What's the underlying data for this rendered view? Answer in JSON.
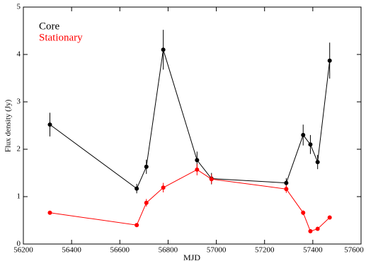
{
  "chart_data": {
    "type": "scatter",
    "xlabel": "MJD",
    "ylabel": "Flux density (Jy)",
    "x": [
      56310,
      56670,
      56710,
      56780,
      56920,
      56980,
      57290,
      57360,
      57390,
      57420,
      57470
    ],
    "series": [
      {
        "name": "Core",
        "color": "#000000",
        "values": [
          2.52,
          1.17,
          1.63,
          4.1,
          1.77,
          1.38,
          1.29,
          2.3,
          2.1,
          1.73,
          3.87
        ],
        "errors": [
          0.25,
          0.1,
          0.15,
          0.42,
          0.18,
          0.12,
          0.1,
          0.22,
          0.2,
          0.15,
          0.38
        ]
      },
      {
        "name": "Stationary",
        "color": "#ff0000",
        "values": [
          0.66,
          0.4,
          0.87,
          1.19,
          1.57,
          1.37,
          1.16,
          0.66,
          0.27,
          0.32,
          0.56
        ],
        "errors": [
          0.04,
          0.03,
          0.08,
          0.1,
          0.12,
          0.1,
          0.08,
          0.05,
          0.03,
          0.03,
          0.04
        ]
      }
    ],
    "xlim": [
      56200,
      57600
    ],
    "xticks": [
      56200,
      56400,
      56600,
      56800,
      57000,
      57200,
      57400,
      57600
    ],
    "ylim": [
      0,
      5
    ],
    "yticks": [
      0,
      1,
      2,
      3,
      4,
      5
    ],
    "legend": "upper left"
  }
}
